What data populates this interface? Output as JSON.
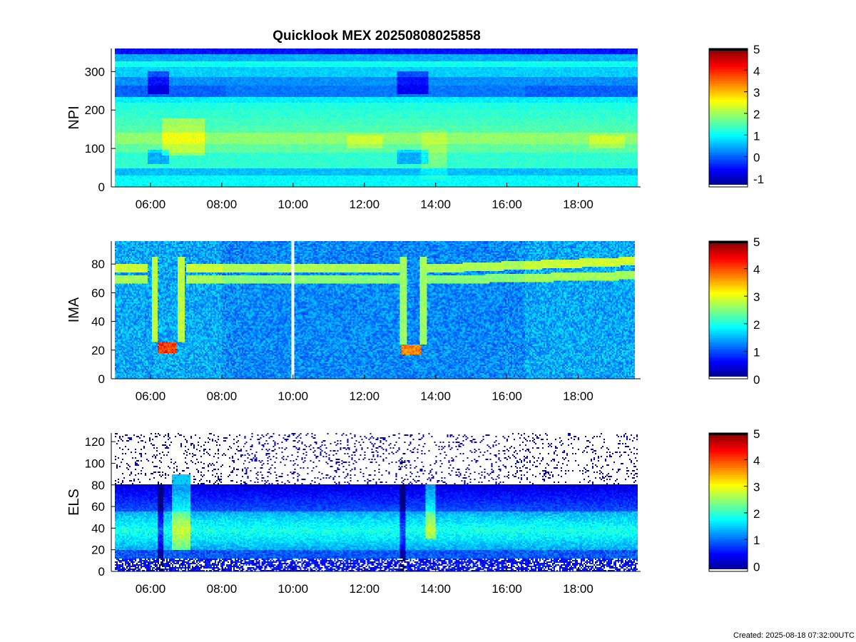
{
  "title": "Quicklook MEX 20250808025858",
  "footer": "Created: 2025-08-18 07:32:00UTC",
  "chart_data": [
    {
      "type": "heatmap",
      "ylabel": "NPI",
      "time_start": "05:00",
      "time_end": "19:40",
      "xticks": [
        "06:00",
        "08:00",
        "10:00",
        "12:00",
        "14:00",
        "16:00",
        "18:00"
      ],
      "xtick_hours": [
        6,
        8,
        10,
        12,
        14,
        16,
        18
      ],
      "ylim": [
        0,
        360
      ],
      "yticks": [
        0,
        100,
        200,
        300
      ],
      "colorbar": {
        "range": [
          -1.4,
          5
        ],
        "ticks": [
          -1,
          0,
          1,
          2,
          3,
          4,
          5
        ]
      },
      "gap_hours": []
    },
    {
      "type": "heatmap",
      "ylabel": "IMA",
      "time_start": "05:00",
      "time_end": "19:35",
      "xticks": [
        "06:00",
        "08:00",
        "10:00",
        "12:00",
        "14:00",
        "16:00",
        "18:00"
      ],
      "xtick_hours": [
        6,
        8,
        10,
        12,
        14,
        16,
        18
      ],
      "ylim": [
        0,
        96
      ],
      "yticks": [
        0,
        20,
        40,
        60,
        80
      ],
      "colorbar": {
        "range": [
          0,
          5
        ],
        "ticks": [
          0,
          1,
          2,
          3,
          4,
          5
        ]
      },
      "gap_hours": [
        [
          9.95,
          10.05
        ]
      ]
    },
    {
      "type": "heatmap",
      "ylabel": "ELS",
      "time_start": "05:00",
      "time_end": "19:40",
      "xticks": [
        "06:00",
        "08:00",
        "10:00",
        "12:00",
        "14:00",
        "16:00",
        "18:00"
      ],
      "xtick_hours": [
        6,
        8,
        10,
        12,
        14,
        16,
        18
      ],
      "ylim": [
        0,
        128
      ],
      "yticks": [
        0,
        20,
        40,
        60,
        80,
        100,
        120
      ],
      "colorbar": {
        "range": [
          -0.2,
          5
        ],
        "ticks": [
          0,
          1,
          2,
          3,
          4,
          5
        ]
      },
      "gap_hours": []
    }
  ]
}
